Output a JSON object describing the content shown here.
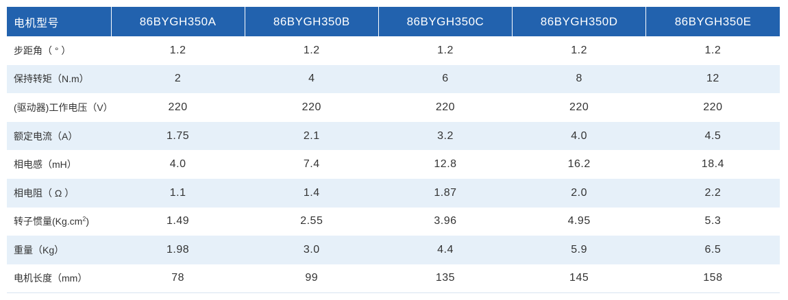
{
  "table": {
    "header": {
      "row_label": "电机型号",
      "models": [
        "86BYGH350A",
        "86BYGH350B",
        "86BYGH350C",
        "86BYGH350D",
        "86BYGH350E"
      ]
    },
    "rows": [
      {
        "label": "步距角（ ° ）",
        "values": [
          "1.2",
          "1.2",
          "1.2",
          "1.2",
          "1.2"
        ]
      },
      {
        "label": "保持转矩（N.m）",
        "values": [
          "2",
          "4",
          "6",
          "8",
          "12"
        ]
      },
      {
        "label": "(驱动器)工作电压（V）",
        "values": [
          "220",
          "220",
          "220",
          "220",
          "220"
        ]
      },
      {
        "label": "额定电流（A）",
        "values": [
          "1.75",
          "2.1",
          "3.2",
          "4.0",
          "4.5"
        ]
      },
      {
        "label": "相电感（mH）",
        "values": [
          "4.0",
          "7.4",
          "12.8",
          "16.2",
          "18.4"
        ]
      },
      {
        "label": "相电阻（ Ω ）",
        "values": [
          "1.1",
          "1.4",
          "1.87",
          "2.0",
          "2.2"
        ]
      },
      {
        "label": "转子惯量(Kg.cm",
        "label_sup": "2",
        "label_tail": ")",
        "values": [
          "1.49",
          "2.55",
          "3.96",
          "4.95",
          "5.3"
        ]
      },
      {
        "label": "重量（Kg）",
        "values": [
          "1.98",
          "3.0",
          "4.4",
          "5.9",
          "6.5"
        ]
      },
      {
        "label": "电机长度（mm）",
        "values": [
          "78",
          "99",
          "135",
          "145",
          "158"
        ]
      }
    ]
  },
  "colors": {
    "header_bg": "#2262ae",
    "stripe_bg": "#e6f0f9",
    "text": "#333333"
  }
}
